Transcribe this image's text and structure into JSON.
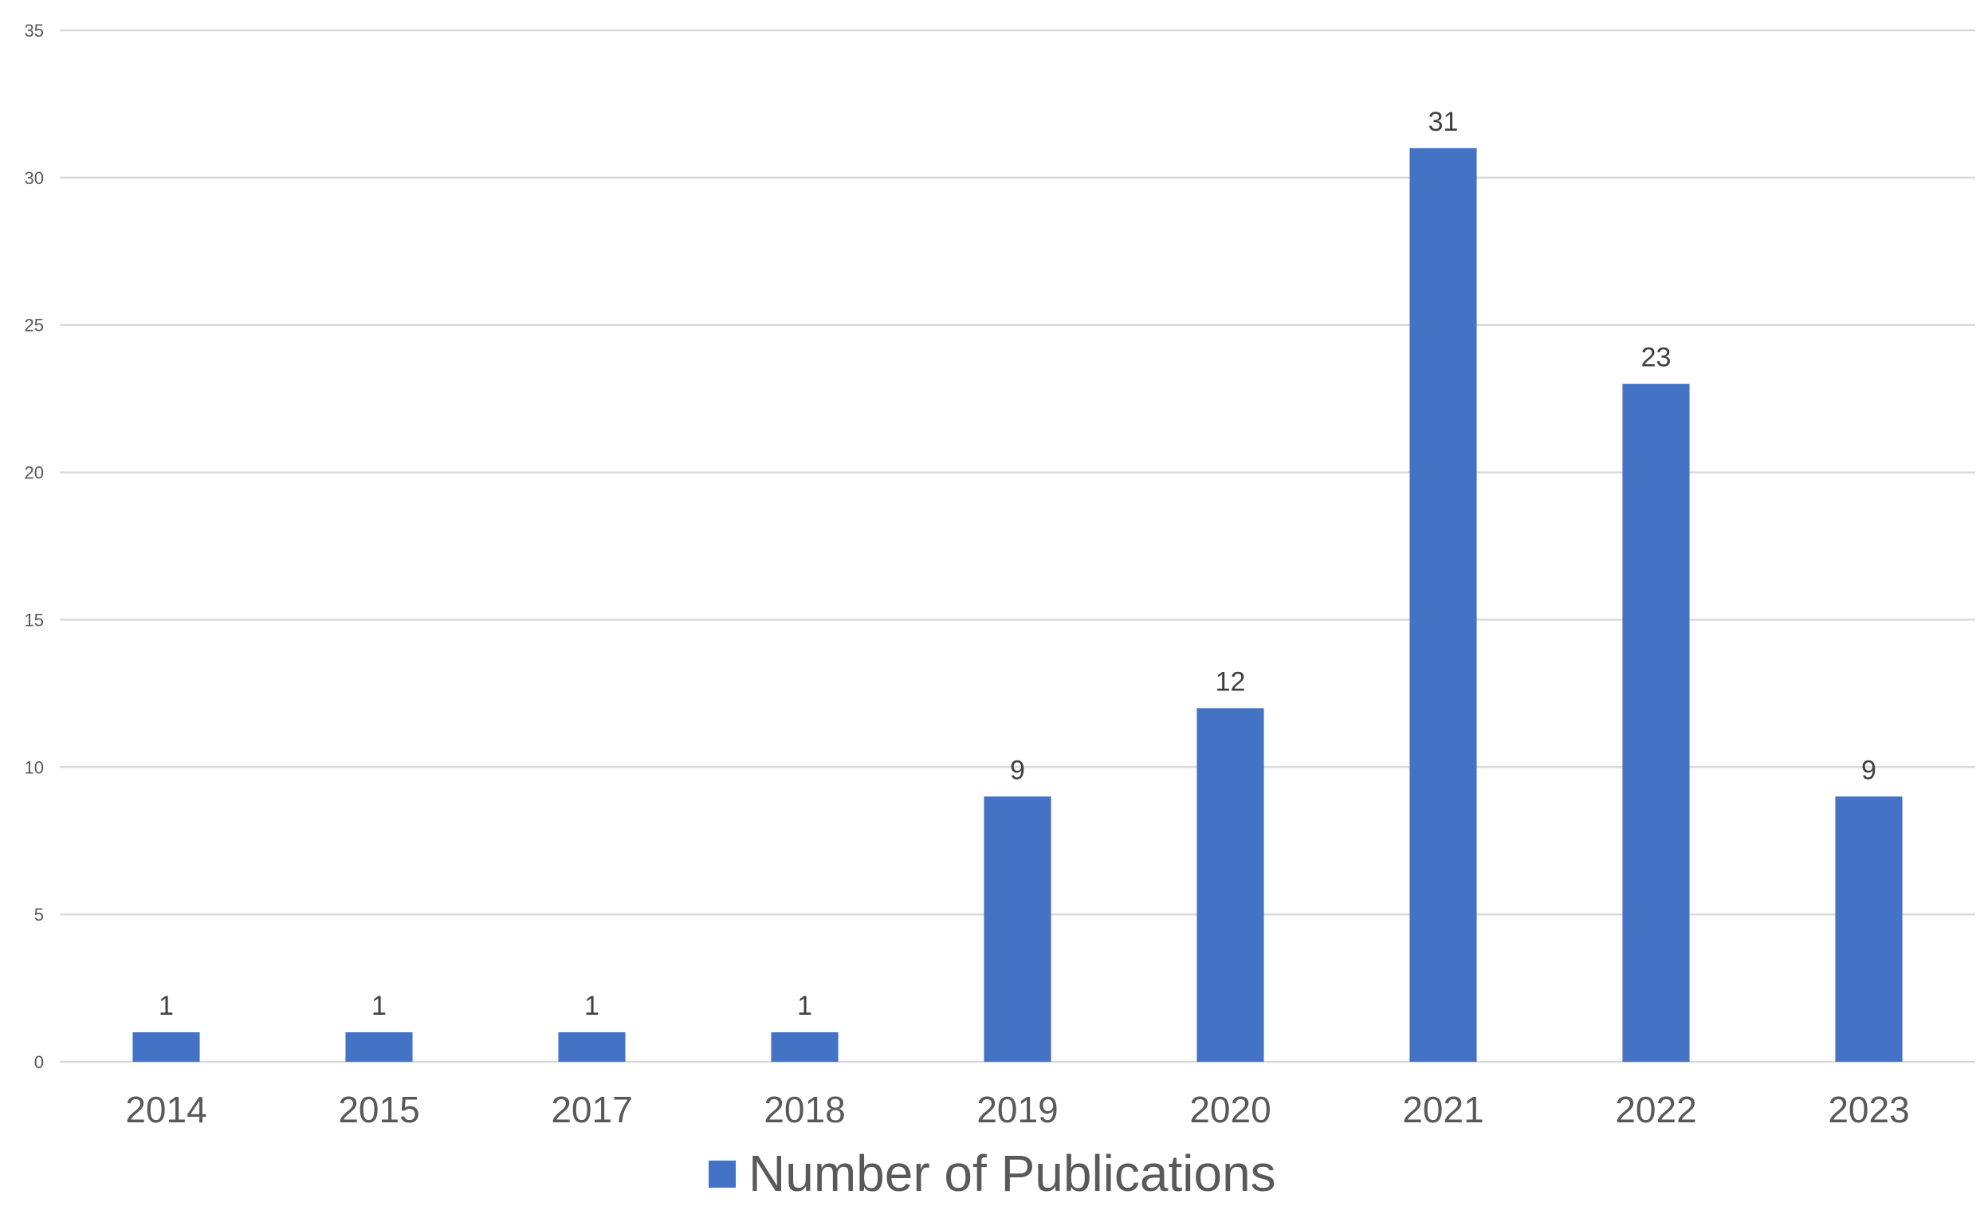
{
  "chart_data": {
    "type": "bar",
    "title": "",
    "xlabel": "",
    "ylabel": "",
    "categories": [
      "2014",
      "2015",
      "2017",
      "2018",
      "2019",
      "2020",
      "2021",
      "2022",
      "2023"
    ],
    "series": [
      {
        "name": "Number of Publications",
        "values": [
          1,
          1,
          1,
          1,
          9,
          12,
          31,
          23,
          9
        ],
        "color": "#4472C4"
      }
    ],
    "ylim": [
      0,
      35
    ],
    "y_ticks": [
      0,
      5,
      10,
      15,
      20,
      25,
      30,
      35
    ],
    "data_labels": true,
    "grid": true,
    "gridline_color": "#D9D9D9",
    "legend_position": "bottom"
  }
}
